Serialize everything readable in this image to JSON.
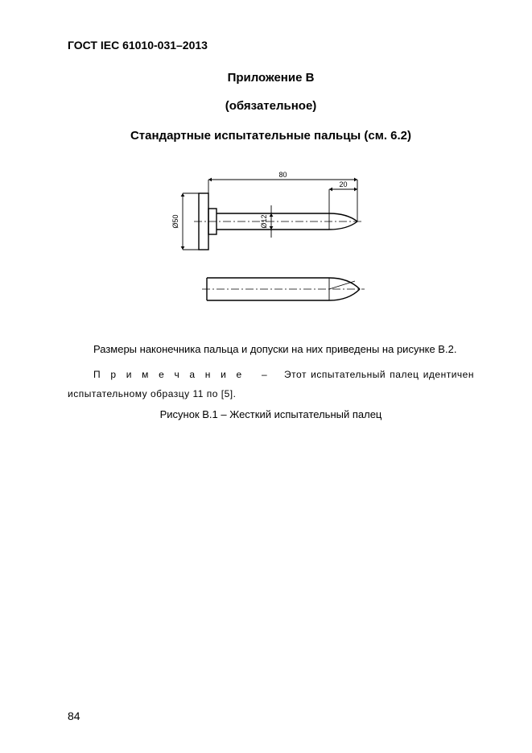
{
  "header": {
    "standard_code": "ГОСТ IEC 61010-031–2013"
  },
  "titles": {
    "appendix": "Приложение В",
    "mandatory": "(обязательное)",
    "subtitle": "Стандартные испытательные пальцы (см. 6.2)"
  },
  "figure": {
    "type": "diagram",
    "stroke_color": "#000000",
    "background_color": "#ffffff",
    "stroke_width_main": 1.4,
    "stroke_width_dim": 0.9,
    "dim_fontsize": 9,
    "dimensions": {
      "total_length": "80",
      "tip_length": "20",
      "shaft_diameter": "Ø12",
      "flange_diameter": "Ø50"
    }
  },
  "paragraphs": {
    "body": "Размеры наконечника пальца и допуски на них приведены на рисунке В.2.",
    "note_label": "П р и м е ч а н и е",
    "note_dash": "–",
    "note_rest": "Этот испытательный палец идентичен испытательному образцу 11 по [5].",
    "caption": "Рисунок В.1 – Жесткий испытательный палец"
  },
  "page_number": "84"
}
